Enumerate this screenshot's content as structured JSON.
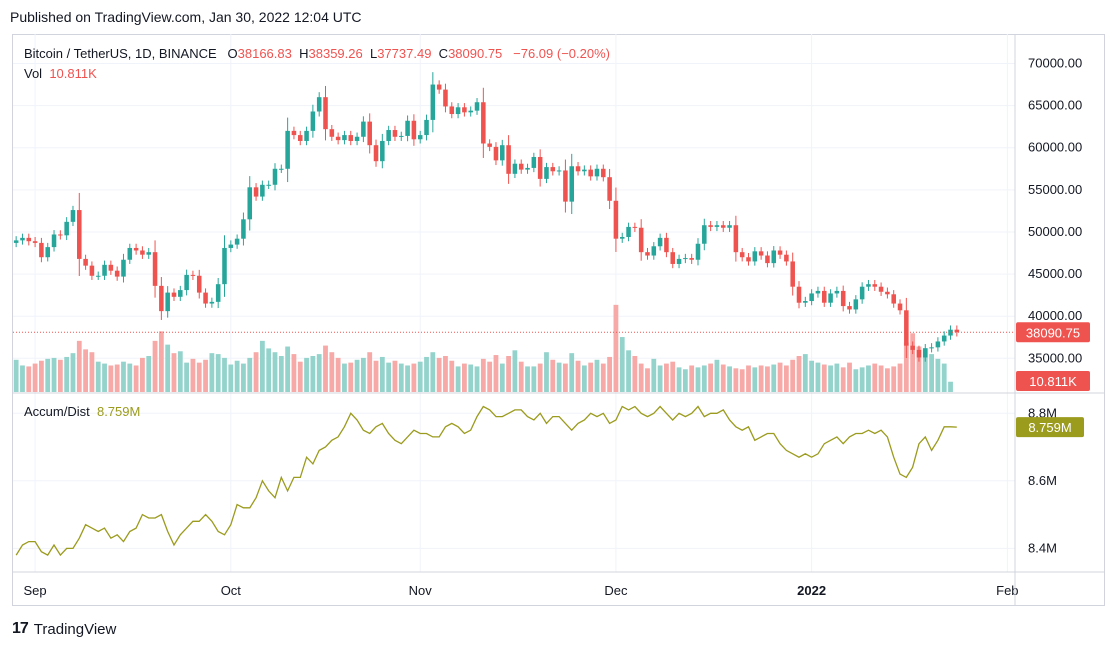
{
  "header": {
    "published": "Published on TradingView.com, Jan 30, 2022 12:04 UTC"
  },
  "legend": {
    "symbol": "Bitcoin / TetherUS, 1D, BINANCE",
    "o_label": "O",
    "o_value": "38166.83",
    "h_label": "H",
    "h_value": "38359.26",
    "l_label": "L",
    "l_value": "37737.49",
    "c_label": "C",
    "c_value": "38090.75",
    "change": "−76.09 (−0.20%)",
    "vol_label": "Vol",
    "vol_value": "10.811K",
    "ad_label": "Accum/Dist",
    "ad_value": "8.759M"
  },
  "footer": {
    "brand": "TradingView",
    "logo": "17"
  },
  "colors": {
    "up": "#26a69a",
    "down": "#ef5350",
    "up_vol": "#93d3cc",
    "down_vol": "#f6a9a7",
    "ad": "#9b9b1e",
    "grid": "#f0f3fa"
  },
  "chart_data": [
    {
      "type": "candlestick",
      "title": "Bitcoin / TetherUS, 1D, BINANCE",
      "ylim": [
        31000,
        73500
      ],
      "y_ticks": [
        "70000.00",
        "65000.00",
        "60000.00",
        "55000.00",
        "50000.00",
        "45000.00",
        "40000.00",
        "35000.00"
      ],
      "x_ticks": [
        "Sep",
        "Oct",
        "Nov",
        "Dec",
        "2022",
        "Feb"
      ],
      "last_price_label": "38090.75",
      "close": [
        49000,
        49300,
        48900,
        48700,
        47000,
        48200,
        49700,
        49600,
        51200,
        52600,
        46800,
        46000,
        44800,
        44800,
        46100,
        45400,
        44700,
        46700,
        48100,
        47800,
        47300,
        47600,
        43600,
        40600,
        42800,
        42300,
        43100,
        44900,
        44800,
        42800,
        41500,
        41700,
        43800,
        48100,
        48500,
        49200,
        51500,
        55300,
        54200,
        55600,
        55600,
        57500,
        57500,
        62000,
        61500,
        60800,
        62000,
        64300,
        66000,
        62200,
        61300,
        60900,
        61500,
        60800,
        61300,
        63100,
        60300,
        58400,
        60800,
        62100,
        61300,
        61400,
        63200,
        61000,
        61500,
        63300,
        67500,
        66900,
        64900,
        64000,
        64800,
        64200,
        64400,
        65400,
        60500,
        60100,
        58500,
        60300,
        56900,
        58100,
        57400,
        57600,
        58900,
        56300,
        57700,
        57200,
        57300,
        53600,
        57800,
        57200,
        57400,
        56600,
        57500,
        56500,
        53700,
        49200,
        49400,
        50600,
        50500,
        47600,
        47200,
        48300,
        49300,
        47600,
        46200,
        46800,
        46900,
        46700,
        48600,
        50800,
        50600,
        50800,
        50500,
        50800,
        47600,
        47000,
        46500,
        47700,
        47200,
        46300,
        47800,
        47300,
        46500,
        43500,
        41600,
        41800,
        42700,
        43000,
        41600,
        42700,
        43000,
        41200,
        40800,
        42000,
        43500,
        43800,
        43500,
        42900,
        42600,
        41500,
        40700,
        36500,
        36000,
        35100,
        36200,
        36300,
        37000,
        37700,
        38400,
        38091
      ],
      "volume_k": [
        34,
        28,
        27,
        30,
        33,
        35,
        36,
        34,
        37,
        41,
        54,
        45,
        42,
        32,
        30,
        28,
        29,
        32,
        30,
        28,
        36,
        38,
        54,
        64,
        50,
        41,
        43,
        31,
        35,
        31,
        34,
        41,
        40,
        36,
        29,
        33,
        30,
        36,
        42,
        54,
        46,
        42,
        38,
        48,
        40,
        32,
        36,
        38,
        40,
        49,
        42,
        36,
        30,
        31,
        34,
        36,
        42,
        33,
        37,
        31,
        33,
        30,
        28,
        30,
        32,
        37,
        42,
        36,
        38,
        33,
        27,
        30,
        29,
        27,
        35,
        32,
        39,
        30,
        38,
        44,
        32,
        27,
        27,
        30,
        42,
        34,
        31,
        30,
        41,
        33,
        28,
        31,
        34,
        30,
        37,
        92,
        58,
        44,
        38,
        30,
        25,
        35,
        28,
        30,
        32,
        26,
        24,
        28,
        26,
        28,
        30,
        34,
        29,
        27,
        25,
        24,
        28,
        26,
        28,
        27,
        29,
        31,
        28,
        34,
        38,
        40,
        33,
        31,
        29,
        28,
        30,
        26,
        31,
        24,
        26,
        28,
        30,
        28,
        25,
        27,
        30,
        52,
        62,
        48,
        46,
        40,
        35,
        30,
        10.811
      ]
    },
    {
      "type": "line",
      "title": "Accum/Dist",
      "ylim": [
        8.33,
        8.86
      ],
      "y_ticks": [
        "8.8M",
        "8.6M",
        "8.4M"
      ],
      "last_value_label": "8.759M",
      "values_m": [
        8.38,
        8.41,
        8.42,
        8.42,
        8.39,
        8.38,
        8.41,
        8.38,
        8.4,
        8.4,
        8.43,
        8.47,
        8.46,
        8.45,
        8.46,
        8.43,
        8.44,
        8.42,
        8.45,
        8.46,
        8.5,
        8.49,
        8.49,
        8.5,
        8.45,
        8.41,
        8.44,
        8.46,
        8.48,
        8.48,
        8.5,
        8.48,
        8.45,
        8.44,
        8.47,
        8.53,
        8.52,
        8.52,
        8.55,
        8.6,
        8.57,
        8.55,
        8.61,
        8.57,
        8.61,
        8.61,
        8.67,
        8.65,
        8.69,
        8.7,
        8.72,
        8.73,
        8.76,
        8.8,
        8.78,
        8.75,
        8.74,
        8.76,
        8.77,
        8.74,
        8.72,
        8.71,
        8.73,
        8.75,
        8.74,
        8.74,
        8.73,
        8.73,
        8.76,
        8.77,
        8.76,
        8.74,
        8.75,
        8.79,
        8.82,
        8.81,
        8.79,
        8.79,
        8.8,
        8.81,
        8.81,
        8.79,
        8.78,
        8.8,
        8.77,
        8.79,
        8.79,
        8.77,
        8.75,
        8.77,
        8.78,
        8.8,
        8.79,
        8.8,
        8.77,
        8.78,
        8.82,
        8.81,
        8.82,
        8.8,
        8.79,
        8.8,
        8.82,
        8.8,
        8.78,
        8.8,
        8.79,
        8.8,
        8.82,
        8.79,
        8.8,
        8.8,
        8.81,
        8.78,
        8.76,
        8.75,
        8.76,
        8.72,
        8.73,
        8.74,
        8.74,
        8.71,
        8.69,
        8.68,
        8.67,
        8.68,
        8.67,
        8.68,
        8.71,
        8.72,
        8.73,
        8.71,
        8.73,
        8.74,
        8.74,
        8.75,
        8.74,
        8.75,
        8.73,
        8.67,
        8.62,
        8.61,
        8.64,
        8.71,
        8.73,
        8.69,
        8.72,
        8.76,
        8.76,
        8.759
      ]
    }
  ]
}
